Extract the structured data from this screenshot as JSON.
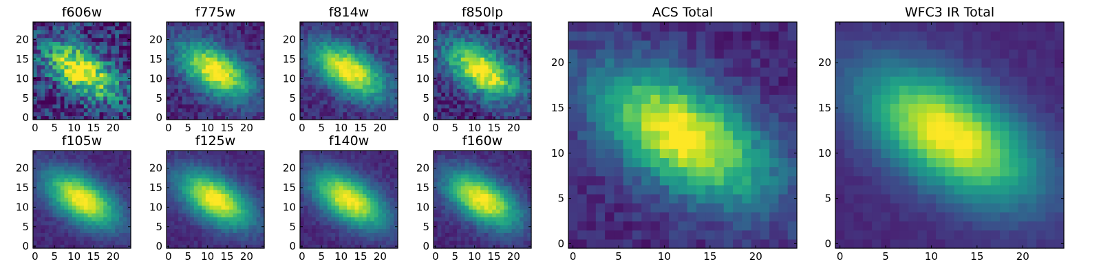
{
  "chart_data": [
    {
      "type": "heatmap",
      "title": "f606w",
      "noise": 0.24,
      "peak": [
        12,
        12
      ],
      "xticks": [
        "0",
        "5",
        "10",
        "15",
        "20"
      ],
      "yticks": [
        "0",
        "5",
        "10",
        "15",
        "20"
      ],
      "xlim": [
        0,
        25
      ],
      "ylim": [
        0,
        25
      ],
      "grid": false,
      "colormap": "viridis"
    },
    {
      "type": "heatmap",
      "title": "f775w",
      "noise": 0.1,
      "peak": [
        12,
        12
      ],
      "xticks": [
        "0",
        "5",
        "10",
        "15",
        "20"
      ],
      "yticks": [
        "0",
        "5",
        "10",
        "15",
        "20"
      ],
      "xlim": [
        0,
        25
      ],
      "ylim": [
        0,
        25
      ],
      "grid": false,
      "colormap": "viridis"
    },
    {
      "type": "heatmap",
      "title": "f814w",
      "noise": 0.09,
      "peak": [
        12,
        12
      ],
      "xticks": [
        "0",
        "5",
        "10",
        "15",
        "20"
      ],
      "yticks": [
        "0",
        "5",
        "10",
        "15",
        "20"
      ],
      "xlim": [
        0,
        25
      ],
      "ylim": [
        0,
        25
      ],
      "grid": false,
      "colormap": "viridis"
    },
    {
      "type": "heatmap",
      "title": "f850lp",
      "noise": 0.14,
      "peak": [
        12,
        12
      ],
      "xticks": [
        "0",
        "5",
        "10",
        "15",
        "20"
      ],
      "yticks": [
        "0",
        "5",
        "10",
        "15",
        "20"
      ],
      "xlim": [
        0,
        25
      ],
      "ylim": [
        0,
        25
      ],
      "grid": false,
      "colormap": "viridis"
    },
    {
      "type": "heatmap",
      "title": "f105w",
      "noise": 0.05,
      "peak": [
        12,
        12
      ],
      "xticks": [
        "0",
        "5",
        "10",
        "15",
        "20"
      ],
      "yticks": [
        "0",
        "5",
        "10",
        "15",
        "20"
      ],
      "xlim": [
        0,
        25
      ],
      "ylim": [
        0,
        25
      ],
      "grid": false,
      "colormap": "viridis"
    },
    {
      "type": "heatmap",
      "title": "f125w",
      "noise": 0.05,
      "peak": [
        12,
        12
      ],
      "xticks": [
        "0",
        "5",
        "10",
        "15",
        "20"
      ],
      "yticks": [
        "0",
        "5",
        "10",
        "15",
        "20"
      ],
      "xlim": [
        0,
        25
      ],
      "ylim": [
        0,
        25
      ],
      "grid": false,
      "colormap": "viridis"
    },
    {
      "type": "heatmap",
      "title": "f140w",
      "noise": 0.05,
      "peak": [
        12,
        12
      ],
      "xticks": [
        "0",
        "5",
        "10",
        "15",
        "20"
      ],
      "yticks": [
        "0",
        "5",
        "10",
        "15",
        "20"
      ],
      "xlim": [
        0,
        25
      ],
      "ylim": [
        0,
        25
      ],
      "grid": false,
      "colormap": "viridis"
    },
    {
      "type": "heatmap",
      "title": "f160w",
      "noise": 0.06,
      "peak": [
        12,
        12
      ],
      "xticks": [
        "0",
        "5",
        "10",
        "15",
        "20"
      ],
      "yticks": [
        "0",
        "5",
        "10",
        "15",
        "20"
      ],
      "xlim": [
        0,
        25
      ],
      "ylim": [
        0,
        25
      ],
      "grid": false,
      "colormap": "viridis"
    },
    {
      "type": "heatmap",
      "title": "ACS Total",
      "noise": 0.08,
      "peak": [
        12,
        12
      ],
      "xticks": [
        "0",
        "5",
        "10",
        "15",
        "20"
      ],
      "yticks": [
        "0",
        "5",
        "10",
        "15",
        "20"
      ],
      "xlim": [
        0,
        25
      ],
      "ylim": [
        0,
        25
      ],
      "grid": false,
      "colormap": "viridis"
    },
    {
      "type": "heatmap",
      "title": "WFC3 IR Total",
      "noise": 0.03,
      "peak": [
        12,
        12
      ],
      "xticks": [
        "0",
        "5",
        "10",
        "15",
        "20"
      ],
      "yticks": [
        "0",
        "5",
        "10",
        "15",
        "20"
      ],
      "xlim": [
        0,
        25
      ],
      "ylim": [
        0,
        25
      ],
      "grid": false,
      "colormap": "viridis"
    }
  ]
}
